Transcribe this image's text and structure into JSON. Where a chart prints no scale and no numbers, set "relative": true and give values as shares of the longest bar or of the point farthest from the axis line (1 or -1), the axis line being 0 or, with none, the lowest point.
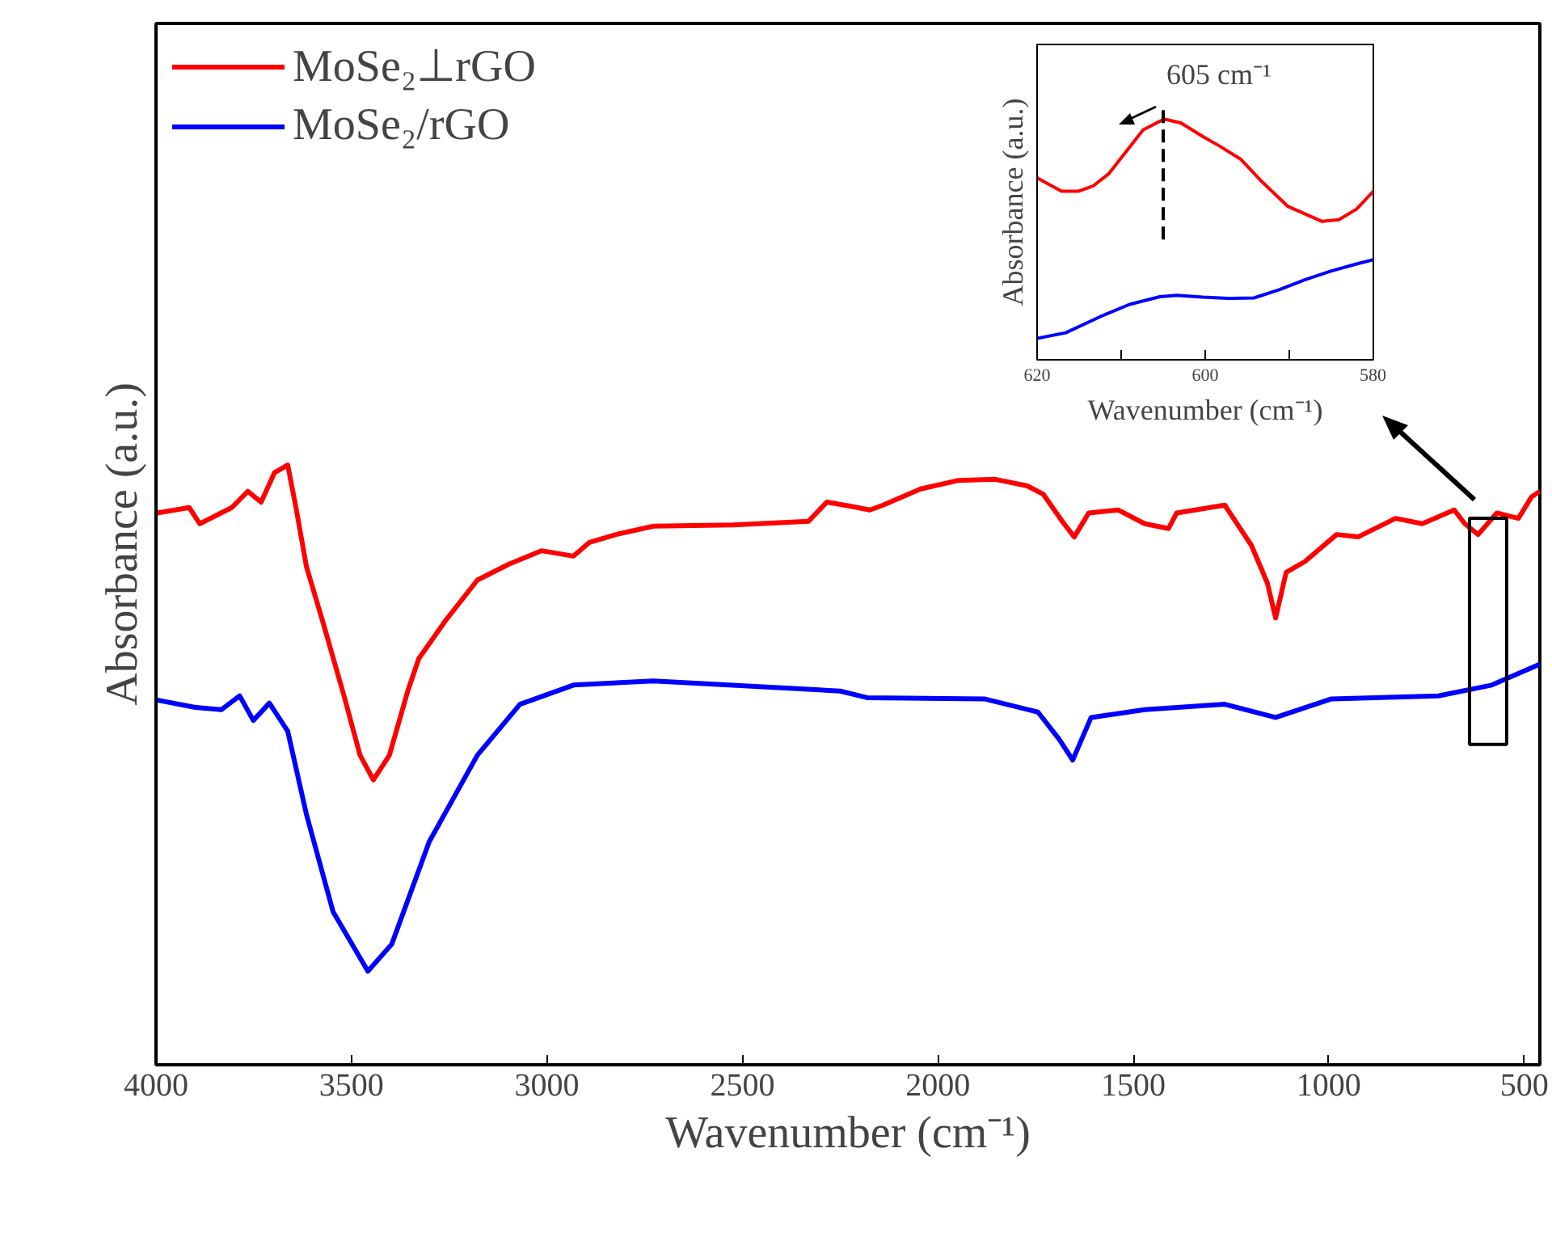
{
  "chart_data": [
    {
      "type": "line",
      "relative": true,
      "xlabel": "Wavenumber (cm⁻¹)",
      "ylabel": "Absorbance (a.u.)",
      "xlim": [
        4000,
        460
      ],
      "xticks": [
        4000,
        3500,
        3000,
        2500,
        2000,
        1500,
        1000,
        500
      ],
      "tick_labels": "x",
      "legend": "top left",
      "grid": false,
      "series": [
        {
          "name": "MoSe₂⊥rGO",
          "color": "#ff0000",
          "x": [
            3997,
            3915,
            3888,
            3806,
            3765,
            3731,
            3697,
            3663,
            3642,
            3615,
            3574,
            3519,
            3478,
            3444,
            3403,
            3356,
            3328,
            3260,
            3178,
            3096,
            3014,
            2932,
            2891,
            2823,
            2727,
            2522,
            2331,
            2284,
            2222,
            2174,
            2140,
            2044,
            1949,
            1853,
            1771,
            1730,
            1683,
            1651,
            1614,
            1539,
            1471,
            1410,
            1389,
            1266,
            1198,
            1157,
            1136,
            1109,
            1061,
            980,
            925,
            829,
            761,
            679,
            652,
            618,
            570,
            515,
            481,
            460
          ],
          "values": [
            0.92,
            0.929,
            0.902,
            0.929,
            0.956,
            0.938,
            0.987,
            1.0,
            0.929,
            0.83,
            0.74,
            0.615,
            0.516,
            0.475,
            0.516,
            0.623,
            0.677,
            0.74,
            0.808,
            0.835,
            0.857,
            0.848,
            0.871,
            0.884,
            0.898,
            0.9,
            0.906,
            0.938,
            0.931,
            0.925,
            0.933,
            0.96,
            0.974,
            0.976,
            0.965,
            0.951,
            0.907,
            0.88,
            0.92,
            0.925,
            0.902,
            0.894,
            0.92,
            0.933,
            0.866,
            0.803,
            0.745,
            0.821,
            0.839,
            0.884,
            0.88,
            0.911,
            0.902,
            0.925,
            0.902,
            0.884,
            0.92,
            0.911,
            0.947,
            0.956
          ]
        },
        {
          "name": "MoSe₂/rGO",
          "color": "#0000ff",
          "x": [
            3997,
            3902,
            3833,
            3786,
            3751,
            3710,
            3663,
            3615,
            3547,
            3458,
            3397,
            3301,
            3178,
            3069,
            2932,
            2727,
            2250,
            2181,
            1881,
            1744,
            1690,
            1655,
            1608,
            1471,
            1266,
            1136,
            993,
            720,
            583,
            460
          ],
          "values": [
            0.608,
            0.596,
            0.592,
            0.615,
            0.574,
            0.603,
            0.556,
            0.417,
            0.255,
            0.156,
            0.201,
            0.372,
            0.516,
            0.601,
            0.633,
            0.64,
            0.623,
            0.612,
            0.61,
            0.588,
            0.543,
            0.508,
            0.579,
            0.592,
            0.601,
            0.579,
            0.61,
            0.615,
            0.633,
            0.668
          ]
        }
      ]
    },
    {
      "type": "line",
      "relative": true,
      "xlabel": "Wavenumber (cm⁻¹)",
      "ylabel": "Absorbance (a.u.)",
      "xlim": [
        620,
        580
      ],
      "xticks": [
        620,
        {
          "value": 610,
          "label": null
        },
        600,
        {
          "value": 590,
          "label": null
        },
        580
      ],
      "tick_labels": "x",
      "grid": false,
      "ref_lines": [
        {
          "axis": "x",
          "value": 605,
          "label": "605 cm⁻¹",
          "line_style": "dashed",
          "color": "#000000"
        }
      ],
      "series": [
        {
          "color": "#ff0000",
          "x": [
            620,
            617.1,
            615.1,
            613.3,
            611.5,
            609.5,
            607.4,
            604.9,
            602.9,
            600.3,
            598.3,
            595.8,
            593.2,
            590.2,
            586.1,
            584.1,
            582.0,
            580
          ],
          "values": [
            0.756,
            0.7,
            0.7,
            0.723,
            0.772,
            0.861,
            0.955,
            1.0,
            0.984,
            0.928,
            0.888,
            0.834,
            0.738,
            0.638,
            0.575,
            0.582,
            0.626,
            0.7
          ]
        },
        {
          "color": "#0000ff",
          "x": [
            620,
            616.6,
            612.5,
            609.0,
            605.4,
            603.4,
            600.3,
            597.3,
            594.2,
            591.2,
            588.1,
            585.0,
            582.0,
            580
          ],
          "values": [
            0.089,
            0.112,
            0.179,
            0.23,
            0.262,
            0.268,
            0.26,
            0.255,
            0.257,
            0.291,
            0.333,
            0.369,
            0.398,
            0.416
          ]
        }
      ]
    }
  ]
}
